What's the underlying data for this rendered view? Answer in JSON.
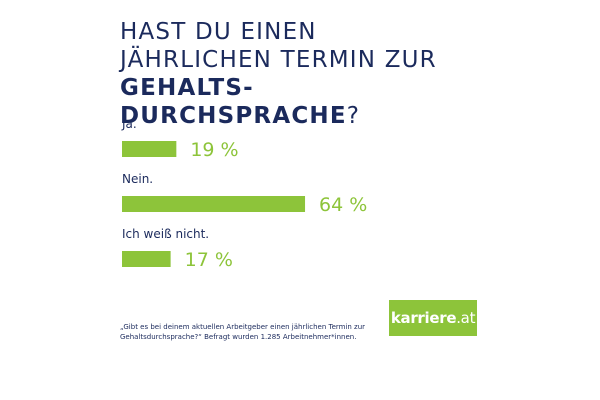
{
  "title": {
    "part1": "Hast du einen jährlichen Termin zur ",
    "part2": "Gehalts- durchsprache",
    "part3": "?"
  },
  "chart_data": {
    "type": "bar",
    "orientation": "horizontal",
    "categories": [
      "Ja.",
      "Nein.",
      "Ich weiß nicht."
    ],
    "values": [
      19,
      64,
      17
    ],
    "value_labels": [
      "19 %",
      "64 %",
      "17 %"
    ],
    "unit": "%",
    "xlim": [
      0,
      100
    ],
    "bar_color": "#8dc43a",
    "label_color": "#1b2a5c",
    "value_color": "#8dc43a"
  },
  "footnote": "„Gibt es bei deinem aktuellen Arbeitgeber einen jährlichen Termin zur Gehaltsdurchsprache?“ Befragt wurden 1.285 Arbeitnehmer*innen.",
  "logo": {
    "name": "karriere",
    "tld": ".at",
    "color": "#8dc43a"
  }
}
